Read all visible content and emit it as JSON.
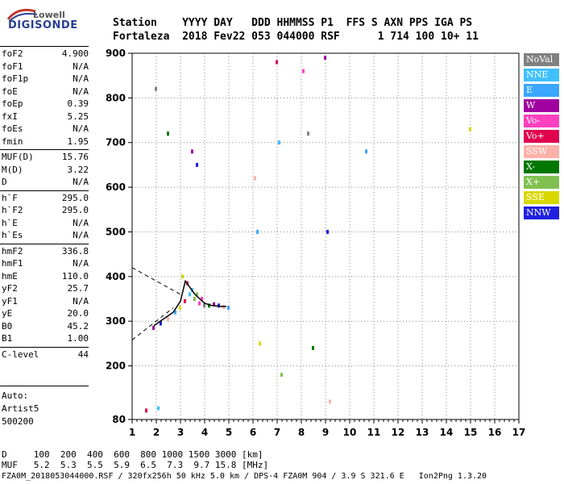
{
  "logo": {
    "top": "Lowell",
    "bottom": "DIGISONDE"
  },
  "header": {
    "line1": "Station    YYYY DAY   DDD HHMMSS P1  FFS S AXN PPS IGA PS",
    "line2": "Fortaleza  2018 Fev22 053 044000 RSF      1 714 100 10+ 11"
  },
  "params": [
    {
      "k": "foF2",
      "v": "4.900"
    },
    {
      "k": "foF1",
      "v": "N/A"
    },
    {
      "k": "foF1p",
      "v": "N/A"
    },
    {
      "k": "foE",
      "v": "N/A"
    },
    {
      "k": "foEp",
      "v": "0.39"
    },
    {
      "k": "fxI",
      "v": "5.25"
    },
    {
      "k": "foEs",
      "v": "N/A"
    },
    {
      "k": "fmin",
      "v": "1.95"
    },
    {
      "k": "MUF(D)",
      "v": "15.76"
    },
    {
      "k": "M(D)",
      "v": "3.22"
    },
    {
      "k": "D",
      "v": "N/A"
    },
    {
      "k": "h`F",
      "v": "295.0"
    },
    {
      "k": "h`F2",
      "v": "295.0"
    },
    {
      "k": "h`E",
      "v": "N/A"
    },
    {
      "k": "h`Es",
      "v": "N/A"
    },
    {
      "k": "hmF2",
      "v": "336.8"
    },
    {
      "k": "hmF1",
      "v": "N/A"
    },
    {
      "k": "hmE",
      "v": "110.0"
    },
    {
      "k": "yF2",
      "v": "25.7"
    },
    {
      "k": "yF1",
      "v": "N/A"
    },
    {
      "k": "yE",
      "v": "20.0"
    },
    {
      "k": "B0",
      "v": "45.2"
    },
    {
      "k": "B1",
      "v": "1.00"
    },
    {
      "k": "C-level",
      "v": "44"
    }
  ],
  "auto": {
    "l1": "Auto:",
    "l2": "Artist5",
    "l3": "500200"
  },
  "footer": {
    "d_line": "D     100  200  400  600  800 1000 1500 3000 [km]",
    "muf_line": "MUF   5.2  5.3  5.5  5.9  6.5  7.3  9.7 15.8 [MHz]",
    "file_line": "FZA0M_2018053044000.RSF / 320fx256h 50 kHz 5.0 km / DPS-4 FZA0M 904 / 3.9 S 321.6 E   Ion2Png 1.3.20"
  },
  "legend": [
    {
      "label": "NoVal",
      "color": "#808080"
    },
    {
      "label": "NNE",
      "color": "#40c0ff"
    },
    {
      "label": "E",
      "color": "#3aa6ff"
    },
    {
      "label": "W",
      "color": "#a000a0"
    },
    {
      "label": "Vo-",
      "color": "#ff40c0"
    },
    {
      "label": "Vo+",
      "color": "#e0004f"
    },
    {
      "label": "SSW",
      "color": "#ffb0a8"
    },
    {
      "label": "X-",
      "color": "#007800"
    },
    {
      "label": "X+",
      "color": "#80c050"
    },
    {
      "label": "SSE",
      "color": "#d8d800"
    },
    {
      "label": "NNW",
      "color": "#2020e0"
    }
  ],
  "chart_data": {
    "type": "scatter",
    "title": "",
    "xlabel": "",
    "ylabel": "",
    "xlim": [
      1,
      17
    ],
    "ylim": [
      80,
      900
    ],
    "x_ticks": [
      "1",
      "2",
      "3",
      "4",
      "5",
      "6",
      "7",
      "8",
      "9",
      "10",
      "11",
      "12",
      "13",
      "14",
      "15",
      "16",
      "17"
    ],
    "y_ticks": [
      "80",
      "200",
      "300",
      "400",
      "500",
      "600",
      "700",
      "800",
      "900"
    ],
    "trace_points": [
      [
        1.9,
        285
      ],
      [
        2.2,
        295
      ],
      [
        2.5,
        305
      ],
      [
        2.8,
        320
      ],
      [
        3.0,
        330
      ],
      [
        3.2,
        345
      ],
      [
        3.4,
        360
      ],
      [
        3.6,
        350
      ],
      [
        3.8,
        340
      ],
      [
        4.0,
        335
      ],
      [
        4.2,
        335
      ],
      [
        4.4,
        338
      ],
      [
        4.6,
        335
      ],
      [
        4.8,
        332
      ],
      [
        5.0,
        330
      ],
      [
        3.1,
        400
      ],
      [
        3.3,
        385
      ],
      [
        3.5,
        370
      ],
      [
        3.7,
        360
      ],
      [
        3.9,
        350
      ],
      [
        2.0,
        820
      ],
      [
        2.5,
        720
      ],
      [
        3.5,
        680
      ],
      [
        3.7,
        650
      ],
      [
        6.1,
        620
      ],
      [
        6.2,
        500
      ],
      [
        6.3,
        250
      ],
      [
        7.0,
        880
      ],
      [
        7.1,
        700
      ],
      [
        7.2,
        180
      ],
      [
        8.1,
        860
      ],
      [
        8.3,
        720
      ],
      [
        8.5,
        240
      ],
      [
        9.0,
        890
      ],
      [
        9.1,
        500
      ],
      [
        9.2,
        120
      ],
      [
        10.7,
        680
      ],
      [
        15.0,
        730
      ],
      [
        1.6,
        100
      ],
      [
        2.1,
        105
      ]
    ],
    "model_curve": [
      [
        1.9,
        290
      ],
      [
        2.3,
        305
      ],
      [
        2.7,
        320
      ],
      [
        3.0,
        345
      ],
      [
        3.2,
        390
      ],
      [
        3.4,
        375
      ],
      [
        3.6,
        360
      ],
      [
        3.8,
        350
      ],
      [
        4.0,
        340
      ],
      [
        4.3,
        335
      ],
      [
        4.7,
        333
      ],
      [
        4.9,
        333
      ]
    ],
    "dashed_lines": [
      {
        "from": [
          1.0,
          420
        ],
        "to": [
          3.0,
          360
        ]
      },
      {
        "from": [
          1.0,
          258
        ],
        "to": [
          2.7,
          330
        ]
      }
    ]
  }
}
